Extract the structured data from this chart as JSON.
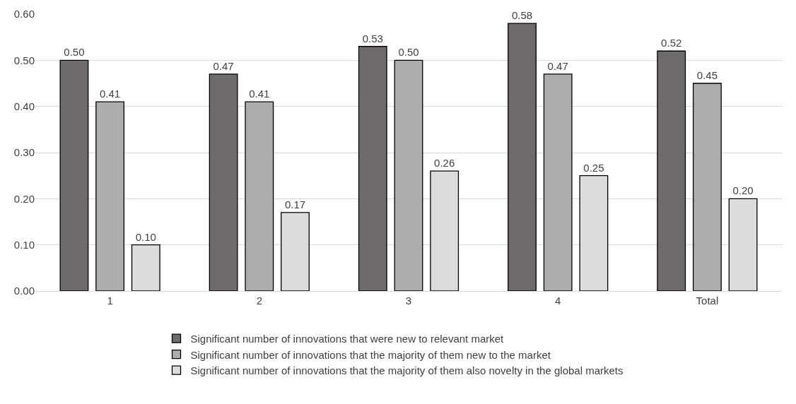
{
  "chart_data": {
    "type": "bar",
    "categories": [
      "1",
      "2",
      "3",
      "4",
      "Total"
    ],
    "series": [
      {
        "name": "Significant number of innovations that were new to relevant market",
        "color": "#6f6b6a",
        "values": [
          0.5,
          0.47,
          0.53,
          0.58,
          0.52
        ],
        "value_labels": [
          "0.50",
          "0.47",
          "0.53",
          "0.58",
          "0.52"
        ]
      },
      {
        "name": "Significant number of innovations that the majority of them new to the market",
        "color": "#adadb0",
        "values": [
          0.41,
          0.41,
          0.5,
          0.47,
          0.45
        ],
        "value_labels": [
          "0.41",
          "0.41",
          "0.50",
          "0.47",
          "0.45"
        ]
      },
      {
        "name": "Significant number of innovations that the majority of them also novelty in the global markets",
        "color": "#dcdcde",
        "values": [
          0.1,
          0.17,
          0.26,
          0.25,
          0.2
        ],
        "value_labels": [
          "0.10",
          "0.17",
          "0.26",
          "0.25",
          "0.20"
        ]
      }
    ],
    "ylim": [
      0,
      0.6
    ],
    "yticks": [
      {
        "value": 0,
        "label": "0.00"
      },
      {
        "value": 0.1,
        "label": "0.10"
      },
      {
        "value": 0.2,
        "label": "0.20"
      },
      {
        "value": 0.3,
        "label": "0.30"
      },
      {
        "value": 0.4,
        "label": "0.40"
      },
      {
        "value": 0.5,
        "label": "0.50"
      },
      {
        "value": 0.6,
        "label": "0.60"
      }
    ],
    "grid": "y",
    "legend": "bottom"
  }
}
